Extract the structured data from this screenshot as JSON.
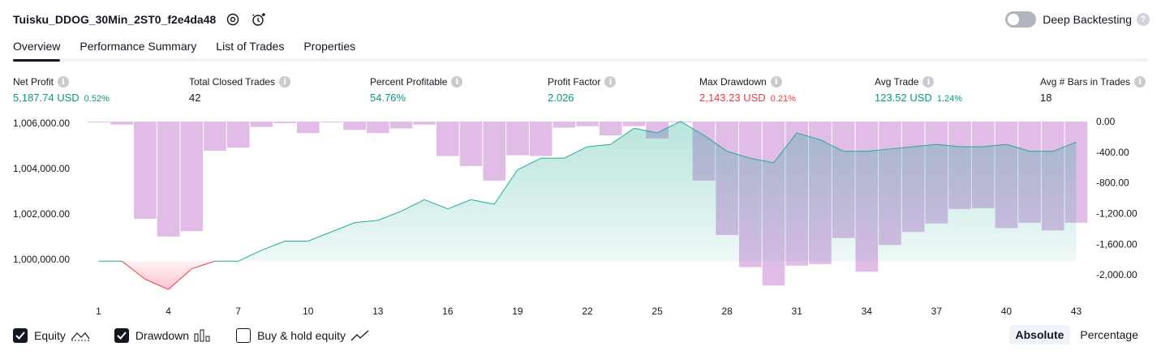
{
  "header": {
    "title": "Tuisku_DDOG_30Min_2ST0_f2e4da48"
  },
  "deep_backtesting": {
    "label": "Deep Backtesting",
    "help": "?"
  },
  "tabs": [
    {
      "label": "Overview"
    },
    {
      "label": "Performance Summary"
    },
    {
      "label": "List of Trades"
    },
    {
      "label": "Properties"
    }
  ],
  "info_glyph": "i",
  "metrics": {
    "net_profit": {
      "label": "Net Profit",
      "value": "5,187.74 USD",
      "pct": "0.52%"
    },
    "total_closed_trades": {
      "label": "Total Closed Trades",
      "value": "42"
    },
    "percent_profitable": {
      "label": "Percent Profitable",
      "value": "54.76%"
    },
    "profit_factor": {
      "label": "Profit Factor",
      "value": "2.026"
    },
    "max_drawdown": {
      "label": "Max Drawdown",
      "value": "2,143.23 USD",
      "pct": "0.21%"
    },
    "avg_trade": {
      "label": "Avg Trade",
      "value": "123.52 USD",
      "pct": "1.24%"
    },
    "avg_bars": {
      "label": "Avg # Bars in Trades",
      "value": "18"
    }
  },
  "legend": {
    "equity": {
      "label": "Equity"
    },
    "drawdown": {
      "label": "Drawdown"
    },
    "buy_hold": {
      "label": "Buy & hold equity"
    }
  },
  "scale": {
    "absolute": "Absolute",
    "percentage": "Percentage"
  },
  "colors": {
    "profit": "#089981",
    "loss": "#f23645",
    "drawdown": "#ce93d8",
    "equity_line": "#22ab94"
  },
  "chart_data": {
    "type": "area",
    "x_ticks": [
      1,
      4,
      7,
      10,
      13,
      16,
      19,
      22,
      25,
      28,
      31,
      34,
      37,
      40,
      43
    ],
    "left_axis": {
      "ticks": [
        "1,006,000.00",
        "1,004,000.00",
        "1,002,000.00",
        "1,000,000.00"
      ],
      "ylim": [
        998720,
        1006040
      ]
    },
    "right_axis": {
      "ticks": [
        "0.00",
        "-400.00",
        "-800.00",
        "-1,200.00",
        "-1,600.00",
        "-2,000.00"
      ],
      "ylim": [
        0,
        -2200
      ]
    },
    "series": [
      {
        "name": "Equity",
        "x": [
          1,
          2,
          3,
          4,
          5,
          6,
          7,
          8,
          9,
          10,
          11,
          12,
          13,
          14,
          15,
          16,
          17,
          18,
          19,
          20,
          21,
          22,
          23,
          24,
          25,
          26,
          27,
          28,
          29,
          30,
          31,
          32,
          33,
          34,
          35,
          36,
          37,
          38,
          39,
          40,
          41,
          42,
          43
        ],
        "values": [
          999980,
          999980,
          999200,
          998750,
          999650,
          999980,
          999980,
          1000450,
          1000850,
          1000850,
          1001250,
          1001650,
          1001750,
          1002150,
          1002650,
          1002250,
          1002650,
          1002450,
          1003950,
          1004450,
          1004450,
          1004950,
          1005050,
          1005750,
          1005550,
          1006050,
          1005450,
          1004750,
          1004450,
          1004250,
          1005550,
          1005250,
          1004750,
          1004750,
          1004850,
          1004950,
          1005050,
          1004950,
          1004950,
          1005050,
          1004750,
          1004750,
          1005150
        ]
      },
      {
        "name": "Drawdown",
        "x": [
          1,
          2,
          3,
          4,
          5,
          6,
          7,
          8,
          9,
          10,
          11,
          12,
          13,
          14,
          15,
          16,
          17,
          18,
          19,
          20,
          21,
          22,
          23,
          24,
          25,
          26,
          27,
          28,
          29,
          30,
          31,
          32,
          33,
          34,
          35,
          36,
          37,
          38,
          39,
          40,
          41,
          42,
          43
        ],
        "values": [
          -10,
          -40,
          -1270,
          -1500,
          -1430,
          -380,
          -340,
          -70,
          -20,
          -150,
          0,
          -110,
          -150,
          -90,
          -40,
          -450,
          -580,
          -770,
          -440,
          -450,
          -80,
          -60,
          -180,
          -60,
          -220,
          0,
          -770,
          -1480,
          -1900,
          -2140,
          -1880,
          -1860,
          -1520,
          -1960,
          -1610,
          -1440,
          -1330,
          -1140,
          -1130,
          -1390,
          -1320,
          -1420,
          -1320
        ]
      }
    ]
  }
}
